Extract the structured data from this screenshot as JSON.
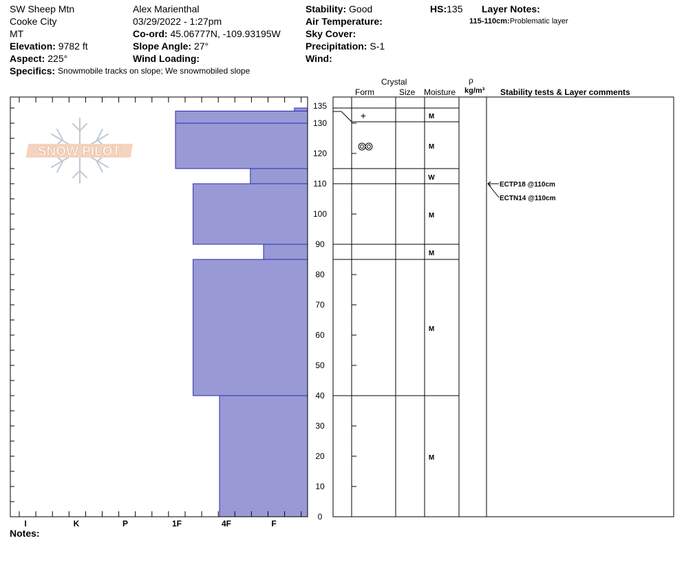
{
  "header": {
    "location": "SW Sheep Mtn",
    "city": "Cooke City",
    "state": "MT",
    "elevation_label": "Elevation:",
    "elevation": "9782 ft",
    "aspect_label": "Aspect:",
    "aspect": "225°",
    "observer": "Alex Marienthal",
    "datetime": "03/29/2022 - 1:27pm",
    "coord_label": "Co-ord:",
    "coord": "45.06777N, -109.93195W",
    "slope_label": "Slope Angle:",
    "slope": "27°",
    "wind_loading_label": "Wind Loading:",
    "wind_loading": "",
    "stability_label": "Stability:",
    "stability": "Good",
    "air_temp_label": "Air Temperature:",
    "air_temp": "",
    "sky_label": "Sky Cover:",
    "sky": "",
    "precip_label": "Precipitation:",
    "precip": "S-1",
    "wind_label": "Wind:",
    "wind": "",
    "hs_label": "HS:",
    "hs": "135",
    "layer_notes_label": "Layer Notes:",
    "layer_note_range": "115-110cm:",
    "layer_note_text": "Problematic layer",
    "specifics_label": "Specifics:",
    "specifics": "Snowmobile tracks on slope; We snowmobiled slope"
  },
  "logo_text": "SNOW PILOT",
  "columns": {
    "crystal": "Crystal",
    "form": "Form",
    "size": "Size",
    "moisture": "Moisture",
    "density_symbol": "ρ",
    "density_unit": "kg/m³",
    "stability_comments": "Stability tests & Layer comments"
  },
  "notes_label": "Notes:",
  "colors": {
    "layer_fill": "#9999d6",
    "layer_stroke": "#2a2ab0"
  },
  "chart_data": {
    "type": "bar",
    "orientation": "horizontal",
    "title": "",
    "ylabel": "",
    "ylim": [
      0,
      135
    ],
    "yticks": [
      0,
      10,
      20,
      30,
      40,
      50,
      60,
      70,
      80,
      90,
      100,
      110,
      120,
      130,
      135
    ],
    "hardness_scale": [
      "I",
      "K",
      "P",
      "1F",
      "4F",
      "F"
    ],
    "layers": [
      {
        "top": 135,
        "bottom": 134,
        "hardness": "F",
        "hardness_value": 0.3,
        "form": "",
        "moisture": ""
      },
      {
        "top": 134,
        "bottom": 130,
        "hardness": "1F",
        "hardness_value": 3.0,
        "form": "+",
        "moisture": "M"
      },
      {
        "top": 130,
        "bottom": 115,
        "hardness": "1F",
        "hardness_value": 3.0,
        "form": "rounds",
        "moisture": "M"
      },
      {
        "top": 115,
        "bottom": 110,
        "hardness": "4F-F",
        "hardness_value": 1.3,
        "form": "",
        "moisture": "W"
      },
      {
        "top": 110,
        "bottom": 90,
        "hardness": "1F-",
        "hardness_value": 2.6,
        "form": "",
        "moisture": "M"
      },
      {
        "top": 90,
        "bottom": 85,
        "hardness": "F+",
        "hardness_value": 1.0,
        "form": "",
        "moisture": "M"
      },
      {
        "top": 85,
        "bottom": 40,
        "hardness": "1F-",
        "hardness_value": 2.6,
        "form": "",
        "moisture": "M"
      },
      {
        "top": 40,
        "bottom": 0,
        "hardness": "4F",
        "hardness_value": 2.0,
        "form": "",
        "moisture": "M"
      }
    ],
    "stability_tests": [
      {
        "label": "ECTP18 @110cm",
        "depth": 110
      },
      {
        "label": "ECTN14 @110cm",
        "depth": 110
      }
    ]
  }
}
